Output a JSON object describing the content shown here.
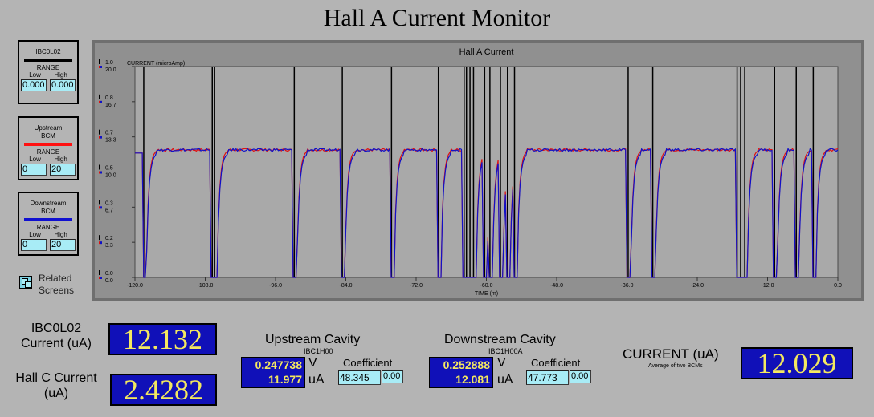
{
  "title": "Hall A Current Monitor",
  "legends": [
    {
      "name": "IBC0L02",
      "color": "#000000",
      "range_label": "RANGE",
      "low_label": "Low",
      "high_label": "High",
      "low": "0.000",
      "high": "0.000"
    },
    {
      "name": "Upstream BCM",
      "color": "#ff1010",
      "range_label": "RANGE",
      "low_label": "Low",
      "high_label": "High",
      "low": "0",
      "high": "20"
    },
    {
      "name": "Downstream BCM",
      "color": "#1010d0",
      "range_label": "RANGE",
      "low_label": "Low",
      "high_label": "High",
      "low": "0",
      "high": "20"
    }
  ],
  "related_screens": "Related Screens",
  "readouts": {
    "ibc_label": "IBC0L02 Current (uA)",
    "ibc_value": "12.132",
    "hallc_label": "Hall C Current (uA)",
    "hallc_value": "2.4282",
    "current_label": "CURRENT (uA)",
    "current_sub": "Average of two BCMs",
    "current_value": "12.029"
  },
  "upstream": {
    "title": "Upstream Cavity",
    "sub": "IBC1H00",
    "volts": "0.247738",
    "volts_unit": "V",
    "uamps": "11.977",
    "uamps_unit": "uA",
    "coef_label": "Coefficient",
    "coef": "48.345",
    "offset": "0.00"
  },
  "downstream": {
    "title": "Downstream Cavity",
    "sub": "IBC1H00A",
    "volts": "0.252888",
    "volts_unit": "V",
    "uamps": "12.081",
    "uamps_unit": "uA",
    "coef_label": "Coefficient",
    "coef": "47.773",
    "offset": "0.00"
  },
  "chart_data": {
    "type": "line",
    "title": "Hall A Current",
    "ylabel": "CURRENT (microAmp)",
    "xlabel": "TIME (m)",
    "xlim": [
      -120,
      0
    ],
    "x_ticks": [
      "-120.0",
      "-108.0",
      "-96.0",
      "-84.0",
      "-72.0",
      "-60.0",
      "-48.0",
      "-36.0",
      "-24.0",
      "-12.0",
      "0.0"
    ],
    "y_left_ticks": [
      "0.0",
      "0.2",
      "0.3",
      "0.5",
      "0.7",
      "0.8",
      "1.0"
    ],
    "y_right_ticks": [
      "0.0",
      "3.3",
      "6.7",
      "10.0",
      "13.3",
      "16.7",
      "20.0"
    ],
    "ylim": [
      0,
      20
    ],
    "baseline": 12.1,
    "trips": [
      -118.5,
      -106.8,
      -106.4,
      -92.8,
      -84.6,
      -76.2,
      -68.2,
      -63.8,
      -63.4,
      -62.8,
      -62.2,
      -60.3,
      -59.4,
      -57.6,
      -56.4,
      -55.2,
      -35.8,
      -31.6,
      -17.2,
      -16.6,
      -15.9,
      -10.8,
      -7.1,
      -4.2
    ],
    "series": [
      {
        "name": "Upstream BCM",
        "color": "#e01010"
      },
      {
        "name": "Downstream BCM",
        "color": "#1010c8"
      }
    ]
  }
}
